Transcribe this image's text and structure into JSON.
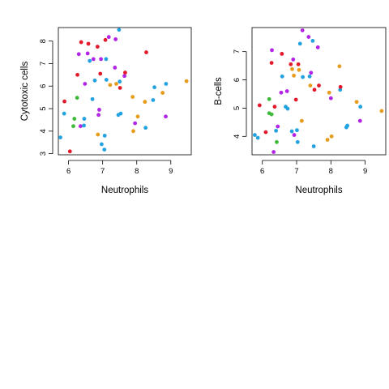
{
  "colors": {
    "red": "#e31a2c",
    "orange": "#e69c1c",
    "blue": "#22a2df",
    "purple": "#b225e6",
    "green": "#3fb93a"
  },
  "chart_data": [
    {
      "type": "scatter",
      "xlabel": "Neutrophils",
      "ylabel": "Cytotoxic cells",
      "xlim": [
        5.7,
        9.6
      ],
      "ylim": [
        2.95,
        8.6
      ],
      "xticks": [
        "6",
        "7",
        "8",
        "9"
      ],
      "yticks": [
        "3",
        "4",
        "5",
        "6",
        "7",
        "8"
      ],
      "points": [
        {
          "x": 5.76,
          "y": 3.72,
          "c": "blue"
        },
        {
          "x": 5.87,
          "y": 4.78,
          "c": "blue"
        },
        {
          "x": 5.88,
          "y": 5.32,
          "c": "red"
        },
        {
          "x": 6.04,
          "y": 3.1,
          "c": "red"
        },
        {
          "x": 6.14,
          "y": 4.22,
          "c": "green"
        },
        {
          "x": 6.17,
          "y": 4.55,
          "c": "green"
        },
        {
          "x": 6.25,
          "y": 5.48,
          "c": "green"
        },
        {
          "x": 6.26,
          "y": 6.5,
          "c": "red"
        },
        {
          "x": 6.3,
          "y": 7.42,
          "c": "purple"
        },
        {
          "x": 6.35,
          "y": 4.22,
          "c": "purple"
        },
        {
          "x": 6.37,
          "y": 7.95,
          "c": "red"
        },
        {
          "x": 6.45,
          "y": 4.25,
          "c": "blue"
        },
        {
          "x": 6.46,
          "y": 4.55,
          "c": "blue"
        },
        {
          "x": 6.48,
          "y": 6.1,
          "c": "purple"
        },
        {
          "x": 6.56,
          "y": 7.45,
          "c": "purple"
        },
        {
          "x": 6.58,
          "y": 7.88,
          "c": "red"
        },
        {
          "x": 6.62,
          "y": 7.12,
          "c": "blue"
        },
        {
          "x": 6.7,
          "y": 5.42,
          "c": "blue"
        },
        {
          "x": 6.73,
          "y": 7.2,
          "c": "purple"
        },
        {
          "x": 6.77,
          "y": 6.25,
          "c": "blue"
        },
        {
          "x": 6.85,
          "y": 7.75,
          "c": "red"
        },
        {
          "x": 6.86,
          "y": 3.85,
          "c": "orange"
        },
        {
          "x": 6.88,
          "y": 4.72,
          "c": "purple"
        },
        {
          "x": 6.9,
          "y": 4.95,
          "c": "purple"
        },
        {
          "x": 6.93,
          "y": 6.55,
          "c": "red"
        },
        {
          "x": 6.95,
          "y": 7.2,
          "c": "purple"
        },
        {
          "x": 6.97,
          "y": 3.42,
          "c": "blue"
        },
        {
          "x": 7.05,
          "y": 3.18,
          "c": "blue"
        },
        {
          "x": 7.06,
          "y": 3.8,
          "c": "blue"
        },
        {
          "x": 7.08,
          "y": 8.05,
          "c": "red"
        },
        {
          "x": 7.1,
          "y": 7.2,
          "c": "blue"
        },
        {
          "x": 7.11,
          "y": 6.28,
          "c": "blue"
        },
        {
          "x": 7.18,
          "y": 8.18,
          "c": "purple"
        },
        {
          "x": 7.22,
          "y": 6.05,
          "c": "orange"
        },
        {
          "x": 7.36,
          "y": 6.82,
          "c": "purple"
        },
        {
          "x": 7.38,
          "y": 8.08,
          "c": "purple"
        },
        {
          "x": 7.4,
          "y": 6.1,
          "c": "orange"
        },
        {
          "x": 7.46,
          "y": 4.72,
          "c": "blue"
        },
        {
          "x": 7.48,
          "y": 8.5,
          "c": "blue"
        },
        {
          "x": 7.5,
          "y": 6.2,
          "c": "blue"
        },
        {
          "x": 7.51,
          "y": 5.92,
          "c": "red"
        },
        {
          "x": 7.53,
          "y": 4.78,
          "c": "blue"
        },
        {
          "x": 7.64,
          "y": 6.45,
          "c": "purple"
        },
        {
          "x": 7.66,
          "y": 6.6,
          "c": "red"
        },
        {
          "x": 7.88,
          "y": 5.52,
          "c": "orange"
        },
        {
          "x": 7.9,
          "y": 4.0,
          "c": "orange"
        },
        {
          "x": 7.95,
          "y": 4.35,
          "c": "purple"
        },
        {
          "x": 8.03,
          "y": 4.65,
          "c": "orange"
        },
        {
          "x": 8.24,
          "y": 5.3,
          "c": "orange"
        },
        {
          "x": 8.26,
          "y": 4.15,
          "c": "blue"
        },
        {
          "x": 8.28,
          "y": 7.5,
          "c": "red"
        },
        {
          "x": 8.48,
          "y": 5.38,
          "c": "blue"
        },
        {
          "x": 8.52,
          "y": 5.95,
          "c": "blue"
        },
        {
          "x": 8.76,
          "y": 5.7,
          "c": "orange"
        },
        {
          "x": 8.85,
          "y": 4.65,
          "c": "purple"
        },
        {
          "x": 8.86,
          "y": 6.1,
          "c": "blue"
        },
        {
          "x": 9.46,
          "y": 6.22,
          "c": "orange"
        }
      ]
    },
    {
      "type": "scatter",
      "xlabel": "Neutrophils",
      "ylabel": "B-cells",
      "xlim": [
        5.7,
        9.6
      ],
      "ylim": [
        3.35,
        7.85
      ],
      "xticks": [
        "6",
        "7",
        "8",
        "9"
      ],
      "yticks": [
        "4",
        "5",
        "6",
        "7"
      ],
      "points": [
        {
          "x": 5.78,
          "y": 4.05,
          "c": "blue"
        },
        {
          "x": 5.87,
          "y": 3.95,
          "c": "blue"
        },
        {
          "x": 5.92,
          "y": 5.1,
          "c": "red"
        },
        {
          "x": 6.1,
          "y": 4.15,
          "c": "red"
        },
        {
          "x": 6.2,
          "y": 5.32,
          "c": "green"
        },
        {
          "x": 6.2,
          "y": 4.82,
          "c": "green"
        },
        {
          "x": 6.27,
          "y": 4.78,
          "c": "green"
        },
        {
          "x": 6.27,
          "y": 6.6,
          "c": "red"
        },
        {
          "x": 6.28,
          "y": 7.05,
          "c": "purple"
        },
        {
          "x": 6.33,
          "y": 3.45,
          "c": "purple"
        },
        {
          "x": 6.36,
          "y": 5.05,
          "c": "red"
        },
        {
          "x": 6.4,
          "y": 4.2,
          "c": "blue"
        },
        {
          "x": 6.42,
          "y": 3.8,
          "c": "green"
        },
        {
          "x": 6.45,
          "y": 4.35,
          "c": "purple"
        },
        {
          "x": 6.55,
          "y": 5.55,
          "c": "purple"
        },
        {
          "x": 6.57,
          "y": 6.92,
          "c": "red"
        },
        {
          "x": 6.58,
          "y": 6.12,
          "c": "blue"
        },
        {
          "x": 6.68,
          "y": 5.05,
          "c": "blue"
        },
        {
          "x": 6.72,
          "y": 5.6,
          "c": "purple"
        },
        {
          "x": 6.74,
          "y": 4.98,
          "c": "blue"
        },
        {
          "x": 6.83,
          "y": 6.55,
          "c": "red"
        },
        {
          "x": 6.86,
          "y": 4.18,
          "c": "blue"
        },
        {
          "x": 6.87,
          "y": 6.38,
          "c": "orange"
        },
        {
          "x": 6.9,
          "y": 6.72,
          "c": "purple"
        },
        {
          "x": 6.92,
          "y": 6.15,
          "c": "orange"
        },
        {
          "x": 6.93,
          "y": 4.05,
          "c": "purple"
        },
        {
          "x": 6.98,
          "y": 5.3,
          "c": "red"
        },
        {
          "x": 7.01,
          "y": 4.22,
          "c": "blue"
        },
        {
          "x": 7.03,
          "y": 3.8,
          "c": "blue"
        },
        {
          "x": 7.05,
          "y": 6.55,
          "c": "red"
        },
        {
          "x": 7.07,
          "y": 6.35,
          "c": "orange"
        },
        {
          "x": 7.1,
          "y": 7.28,
          "c": "blue"
        },
        {
          "x": 7.15,
          "y": 4.55,
          "c": "orange"
        },
        {
          "x": 7.17,
          "y": 7.75,
          "c": "purple"
        },
        {
          "x": 7.18,
          "y": 6.1,
          "c": "blue"
        },
        {
          "x": 7.35,
          "y": 7.52,
          "c": "purple"
        },
        {
          "x": 7.38,
          "y": 6.12,
          "c": "blue"
        },
        {
          "x": 7.4,
          "y": 5.8,
          "c": "orange"
        },
        {
          "x": 7.42,
          "y": 6.25,
          "c": "purple"
        },
        {
          "x": 7.47,
          "y": 7.38,
          "c": "blue"
        },
        {
          "x": 7.5,
          "y": 3.65,
          "c": "blue"
        },
        {
          "x": 7.52,
          "y": 5.65,
          "c": "red"
        },
        {
          "x": 7.62,
          "y": 7.15,
          "c": "purple"
        },
        {
          "x": 7.65,
          "y": 5.8,
          "c": "red"
        },
        {
          "x": 7.9,
          "y": 3.88,
          "c": "orange"
        },
        {
          "x": 7.95,
          "y": 5.55,
          "c": "orange"
        },
        {
          "x": 8.0,
          "y": 5.35,
          "c": "purple"
        },
        {
          "x": 8.02,
          "y": 4.0,
          "c": "orange"
        },
        {
          "x": 8.25,
          "y": 6.48,
          "c": "orange"
        },
        {
          "x": 8.27,
          "y": 5.65,
          "c": "blue"
        },
        {
          "x": 8.28,
          "y": 5.75,
          "c": "red"
        },
        {
          "x": 8.45,
          "y": 4.32,
          "c": "blue"
        },
        {
          "x": 8.48,
          "y": 4.38,
          "c": "blue"
        },
        {
          "x": 8.75,
          "y": 5.22,
          "c": "orange"
        },
        {
          "x": 8.85,
          "y": 4.55,
          "c": "purple"
        },
        {
          "x": 8.86,
          "y": 5.05,
          "c": "blue"
        },
        {
          "x": 9.48,
          "y": 4.9,
          "c": "orange"
        }
      ]
    }
  ]
}
